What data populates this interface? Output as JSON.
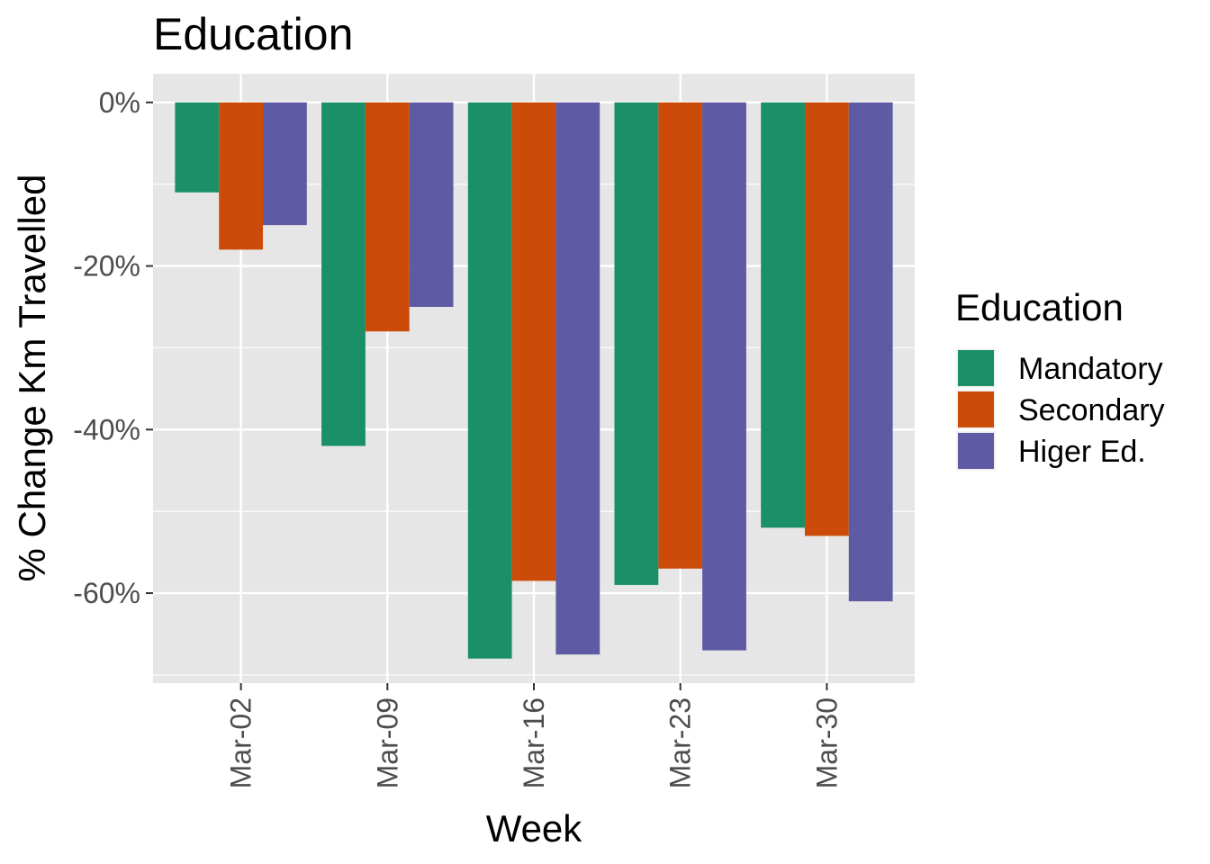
{
  "chart_data": {
    "type": "bar",
    "title": "Education",
    "xlabel": "Week",
    "ylabel": "% Change Km Travelled",
    "categories": [
      "Mar-02",
      "Mar-09",
      "Mar-16",
      "Mar-23",
      "Mar-30"
    ],
    "series": [
      {
        "name": "Mandatory",
        "color": "#1b9068",
        "values": [
          -11,
          -42,
          -68,
          -59,
          -52
        ]
      },
      {
        "name": "Secondary",
        "color": "#cc4b09",
        "values": [
          -18,
          -28,
          -58.5,
          -57,
          -53
        ]
      },
      {
        "name": "Higer Ed.",
        "color": "#5e5aa3",
        "values": [
          -15,
          -25,
          -67.5,
          -67,
          -61
        ]
      }
    ],
    "ylim": [
      -71,
      3.5
    ],
    "yticks": [
      0,
      -20,
      -40,
      -60
    ],
    "ytick_labels": [
      "0%",
      "-20%",
      "-40%",
      "-60%"
    ],
    "legend": {
      "title": "Education",
      "position": "right"
    },
    "grid": true,
    "panel_color": "#e6e6e6"
  }
}
